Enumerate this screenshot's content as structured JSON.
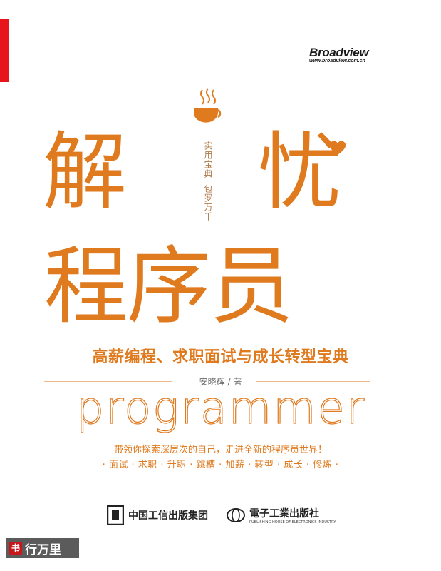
{
  "publisher": {
    "brand": "Broadview",
    "url": "www.broadview.com.cn"
  },
  "title": {
    "line1_left": "解",
    "line1_right": "忧",
    "line2": "程序员"
  },
  "slogan_vertical": {
    "col1": "实用宝典",
    "col2": "包罗万千"
  },
  "subtitle": "高薪编程、求职面试与成长转型宝典",
  "author": "安晓辉 / 著",
  "english_word": "programmer",
  "tagline": "带领你探索深层次的自己，走进全新的程序员世界！",
  "topics": "· 面试 · 求职 · 升职 · 跳槽 · 加薪 · 转型 · 成长 · 修炼 ·",
  "logos": {
    "left": "中国工信出版集团",
    "right": "電子工業出版社",
    "right_sub": "PUBLISHING HOUSE OF ELECTRONICS INDUSTRY"
  },
  "watermark": {
    "seal": "书",
    "text": "行万里"
  },
  "colors": {
    "accent": "#e07a1f",
    "red_bar": "#e8141c"
  }
}
